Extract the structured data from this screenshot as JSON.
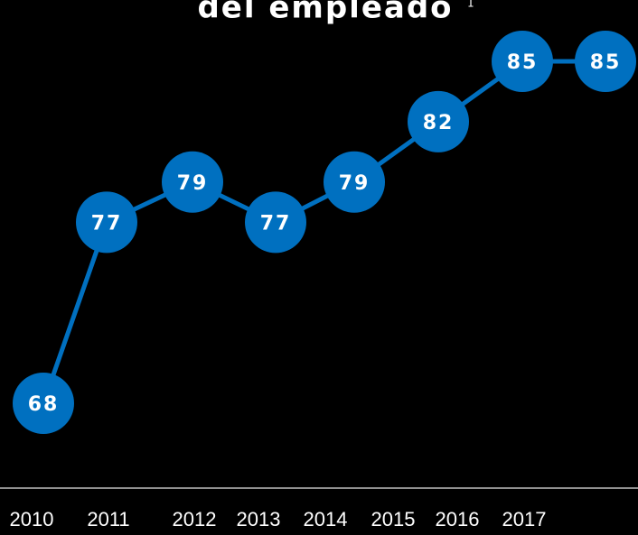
{
  "chart_data": {
    "type": "line",
    "title": "del empleado",
    "title_note": "1",
    "categories": [
      "2010",
      "2011",
      "2012",
      "2013",
      "2014",
      "2015",
      "2016",
      "2017"
    ],
    "values": [
      68,
      77,
      79,
      77,
      79,
      82,
      85,
      85
    ],
    "color": "#0070c0"
  }
}
